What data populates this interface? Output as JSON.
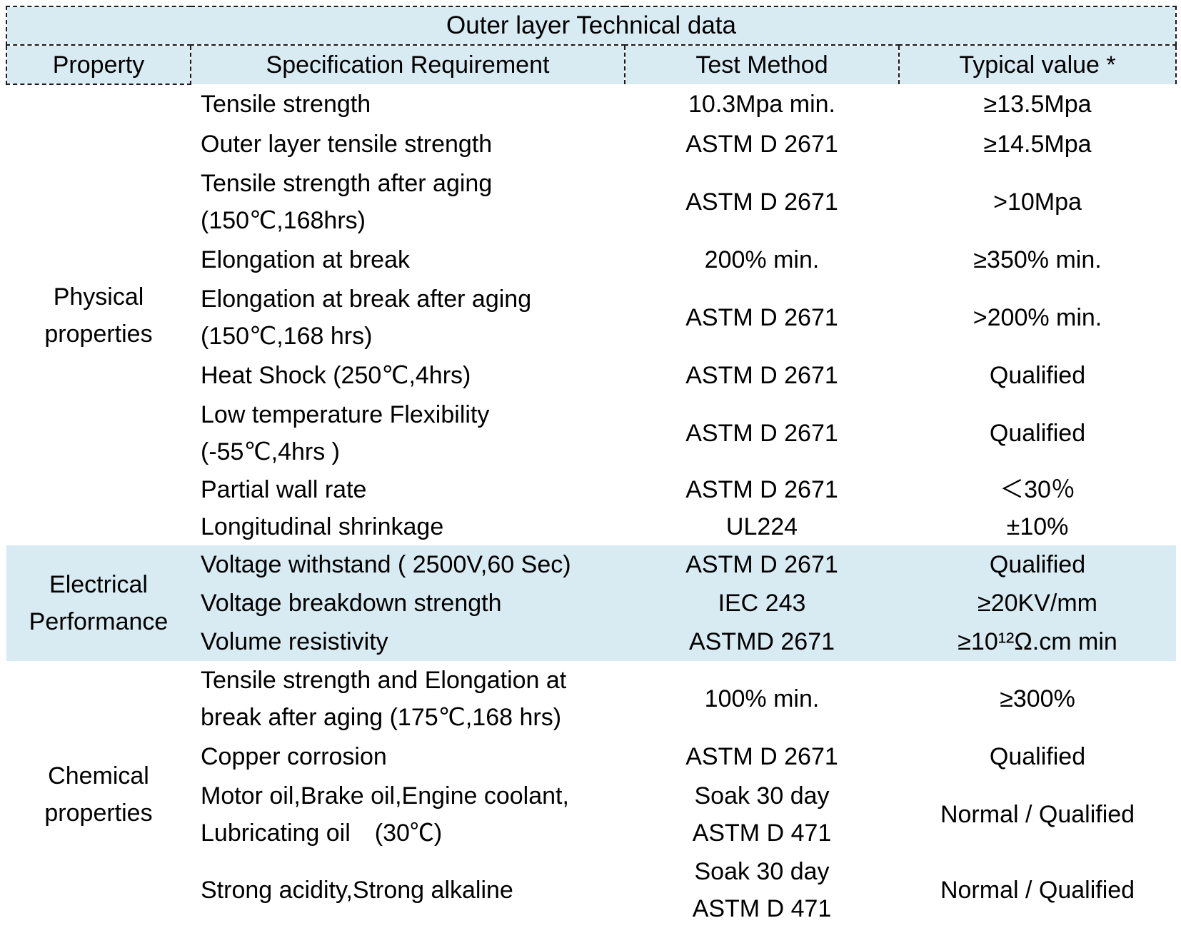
{
  "table": {
    "title": "Outer layer Technical data",
    "columns": [
      "Property",
      "Specification Requirement",
      "Test Method",
      "Typical value *"
    ],
    "colors": {
      "header_bg": "#d8eaf2",
      "highlight_bg": "#d8eaf2",
      "text": "#000000",
      "border": "#1a1a1a"
    },
    "sections": [
      {
        "property": "Physical properties",
        "highlighted": false,
        "rows": [
          {
            "spec": [
              "Tensile strength"
            ],
            "method": [
              "10.3Mpa min."
            ],
            "value": "≥13.5Mpa",
            "size": "single"
          },
          {
            "spec": [
              "Outer layer tensile strength"
            ],
            "method": [
              "ASTM D 2671"
            ],
            "value": "≥14.5Mpa",
            "size": "single"
          },
          {
            "spec": [
              "Tensile strength after aging",
              "(150℃,168hrs)"
            ],
            "method": [
              "ASTM D 2671"
            ],
            "value": ">10Mpa",
            "size": "double"
          },
          {
            "spec": [
              "Elongation at break"
            ],
            "method": [
              "200% min."
            ],
            "value": "≥350% min.",
            "size": "single"
          },
          {
            "spec": [
              "Elongation at break after aging",
              "(150℃,168 hrs)"
            ],
            "method": [
              "ASTM D 2671"
            ],
            "value": ">200% min.",
            "size": "double"
          },
          {
            "spec": [
              "Heat Shock (250℃,4hrs)"
            ],
            "method": [
              "ASTM D 2671"
            ],
            "value": "Qualified",
            "size": "single"
          },
          {
            "spec": [
              "Low temperature Flexibility",
              "(-55℃,4hrs )"
            ],
            "method": [
              "ASTM D 2671"
            ],
            "value": "Qualified",
            "size": "double"
          },
          {
            "spec": [
              "Partial wall rate"
            ],
            "method": [
              "ASTM D 2671"
            ],
            "value": "＜30％",
            "size": "compact"
          },
          {
            "spec": [
              "Longitudinal shrinkage"
            ],
            "method": [
              "UL224"
            ],
            "value": "±10%",
            "size": "compact"
          }
        ]
      },
      {
        "property": "Electrical Performance",
        "highlighted": true,
        "rows": [
          {
            "spec": [
              "Voltage withstand ( 2500V,60 Sec)"
            ],
            "method": [
              "ASTM D 2671"
            ],
            "value": "Qualified",
            "size": "single"
          },
          {
            "spec": [
              "Voltage breakdown strength"
            ],
            "method": [
              "IEC 243"
            ],
            "value": "≥20KV/mm",
            "size": "single"
          },
          {
            "spec": [
              "Volume resistivity"
            ],
            "method": [
              "ASTMD 2671"
            ],
            "value": "≥10¹²Ω.cm min",
            "size": "single"
          }
        ]
      },
      {
        "property": "Chemical properties",
        "highlighted": false,
        "rows": [
          {
            "spec": [
              "Tensile strength and Elongation at",
              "break after aging (175℃,168 hrs)"
            ],
            "method": [
              "100% min."
            ],
            "value": "≥300%",
            "size": "double"
          },
          {
            "spec": [
              "Copper corrosion"
            ],
            "method": [
              "ASTM D 2671"
            ],
            "value": "Qualified",
            "size": "single"
          },
          {
            "spec": [
              "Motor oil,Brake oil,Engine coolant,",
              "Lubricating oil　(30℃)"
            ],
            "method": [
              "Soak 30 day",
              "ASTM D 471"
            ],
            "value": "Normal / Qualified",
            "size": "double"
          },
          {
            "spec": [
              "Strong acidity,Strong alkaline"
            ],
            "method": [
              "Soak 30 day",
              "ASTM D 471"
            ],
            "value": "Normal / Qualified",
            "size": "double"
          }
        ]
      }
    ]
  }
}
